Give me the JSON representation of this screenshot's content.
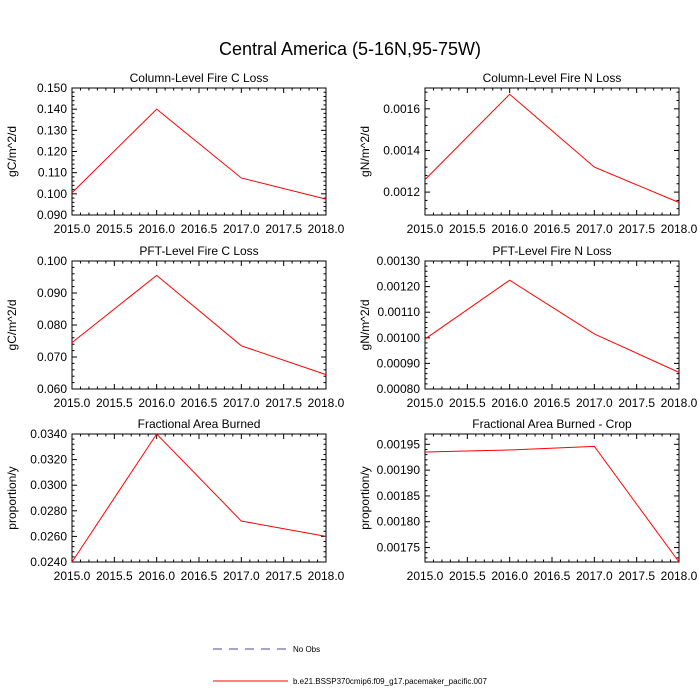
{
  "figure_title": "Central America (5-16N,95-75W)",
  "legend": [
    {
      "label": "No Obs",
      "style": "dashed",
      "color": "#4a4a9a"
    },
    {
      "label": "b.e21.BSSP370cmip6.f09_g17.pacemaker_pacific.007",
      "style": "solid",
      "color": "#ff0000"
    }
  ],
  "chart_data": [
    {
      "type": "line",
      "title": "Column-Level Fire C Loss",
      "ylabel": "gC/m^2/d",
      "xlabel": "",
      "xlim": [
        2015.0,
        2018.0
      ],
      "xticks": [
        "2015.0",
        "2015.5",
        "2016.0",
        "2016.5",
        "2017.0",
        "2017.5",
        "2018.0"
      ],
      "ylim": [
        0.09,
        0.15
      ],
      "yticks": [
        "0.090",
        "0.100",
        "0.110",
        "0.120",
        "0.130",
        "0.140",
        "0.150"
      ],
      "x": [
        2015.0,
        2016.0,
        2017.0,
        2018.0
      ],
      "series": [
        {
          "name": "b.e21.BSSP370cmip6.f09_g17.pacemaker_pacific.007",
          "color": "#ff0000",
          "values": [
            0.1005,
            0.14,
            0.1075,
            0.0975
          ]
        }
      ]
    },
    {
      "type": "line",
      "title": "Column-Level Fire N Loss",
      "ylabel": "gN/m^2/d",
      "xlabel": "",
      "xlim": [
        2015.0,
        2018.0
      ],
      "xticks": [
        "2015.0",
        "2015.5",
        "2016.0",
        "2016.5",
        "2017.0",
        "2017.5",
        "2018.0"
      ],
      "ylim": [
        0.00109,
        0.0017
      ],
      "yticks": [
        "0.0012",
        "0.0014",
        "0.0016"
      ],
      "ytick_values": [
        0.0012,
        0.0014,
        0.0016
      ],
      "x": [
        2015.0,
        2016.0,
        2017.0,
        2018.0
      ],
      "series": [
        {
          "name": "b.e21.BSSP370cmip6.f09_g17.pacemaker_pacific.007",
          "color": "#ff0000",
          "values": [
            0.00126,
            0.00167,
            0.00132,
            0.00115
          ]
        }
      ]
    },
    {
      "type": "line",
      "title": "PFT-Level Fire C Loss",
      "ylabel": "gC/m^2/d",
      "xlabel": "",
      "xlim": [
        2015.0,
        2018.0
      ],
      "xticks": [
        "2015.0",
        "2015.5",
        "2016.0",
        "2016.5",
        "2017.0",
        "2017.5",
        "2018.0"
      ],
      "ylim": [
        0.06,
        0.1
      ],
      "yticks": [
        "0.060",
        "0.070",
        "0.080",
        "0.090",
        "0.100"
      ],
      "x": [
        2015.0,
        2016.0,
        2017.0,
        2018.0
      ],
      "series": [
        {
          "name": "b.e21.BSSP370cmip6.f09_g17.pacemaker_pacific.007",
          "color": "#ff0000",
          "values": [
            0.0745,
            0.0955,
            0.0735,
            0.0645
          ]
        }
      ]
    },
    {
      "type": "line",
      "title": "PFT-Level Fire N Loss",
      "ylabel": "gN/m^2/d",
      "xlabel": "",
      "xlim": [
        2015.0,
        2018.0
      ],
      "xticks": [
        "2015.0",
        "2015.5",
        "2016.0",
        "2016.5",
        "2017.0",
        "2017.5",
        "2018.0"
      ],
      "ylim": [
        0.0008,
        0.0013
      ],
      "yticks": [
        "0.00080",
        "0.00090",
        "0.00100",
        "0.00110",
        "0.00120",
        "0.00130"
      ],
      "x": [
        2015.0,
        2016.0,
        2017.0,
        2018.0
      ],
      "series": [
        {
          "name": "b.e21.BSSP370cmip6.f09_g17.pacemaker_pacific.007",
          "color": "#ff0000",
          "values": [
            0.000995,
            0.001225,
            0.001015,
            0.000865
          ]
        }
      ]
    },
    {
      "type": "line",
      "title": "Fractional Area Burned",
      "ylabel": "proportion/y",
      "xlabel": "",
      "xlim": [
        2015.0,
        2018.0
      ],
      "xticks": [
        "2015.0",
        "2015.5",
        "2016.0",
        "2016.5",
        "2017.0",
        "2017.5",
        "2018.0"
      ],
      "ylim": [
        0.024,
        0.034
      ],
      "yticks": [
        "0.0240",
        "0.0260",
        "0.0280",
        "0.0300",
        "0.0320",
        "0.0340"
      ],
      "x": [
        2015.0,
        2016.0,
        2017.0,
        2018.0
      ],
      "series": [
        {
          "name": "b.e21.BSSP370cmip6.f09_g17.pacemaker_pacific.007",
          "color": "#ff0000",
          "values": [
            0.024,
            0.034,
            0.0272,
            0.026
          ]
        }
      ]
    },
    {
      "type": "line",
      "title": "Fractional Area Burned - Crop",
      "ylabel": "proportion/y",
      "xlabel": "",
      "xlim": [
        2015.0,
        2018.0
      ],
      "xticks": [
        "2015.0",
        "2015.5",
        "2016.0",
        "2016.5",
        "2017.0",
        "2017.5",
        "2018.0"
      ],
      "ylim": [
        0.001722,
        0.00197
      ],
      "yticks": [
        "0.00175",
        "0.00180",
        "0.00185",
        "0.00190",
        "0.00195"
      ],
      "ytick_values": [
        0.00175,
        0.0018,
        0.00185,
        0.0019,
        0.00195
      ],
      "x": [
        2015.0,
        2016.0,
        2017.0,
        2018.0
      ],
      "series": [
        {
          "name": "b.e21.BSSP370cmip6.f09_g17.pacemaker_pacific.007",
          "color": "#ff0000",
          "values": [
            0.001935,
            0.001939,
            0.001946,
            0.001722
          ]
        }
      ]
    }
  ]
}
